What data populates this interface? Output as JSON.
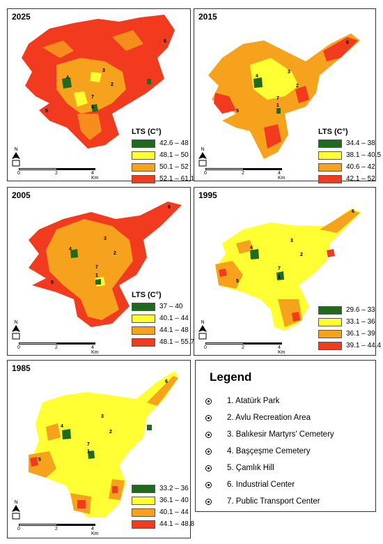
{
  "panels": [
    {
      "year": "2025",
      "legend_title": "LTS (C°)",
      "classes": [
        {
          "label": "42.6 – 48",
          "color": "#1e6b1e"
        },
        {
          "label": "48.1 – 50",
          "color": "#ffff33"
        },
        {
          "label": "50.1 – 52",
          "color": "#f6a21c"
        },
        {
          "label": "52.1 – 61.1",
          "color": "#f23a1e"
        }
      ],
      "scale": {
        "labels": [
          "0",
          "2",
          "4 Km"
        ]
      }
    },
    {
      "year": "2015",
      "legend_title": "LTS (C°)",
      "classes": [
        {
          "label": "34.4 – 38",
          "color": "#1e6b1e"
        },
        {
          "label": "38.1 – 40.5",
          "color": "#ffff33"
        },
        {
          "label": "40.6 – 42",
          "color": "#f6a21c"
        },
        {
          "label": "42.1 – 52",
          "color": "#f23a1e"
        }
      ],
      "scale": {
        "labels": [
          "0",
          "2",
          "4 Km"
        ]
      }
    },
    {
      "year": "2005",
      "legend_title": "LTS (C°)",
      "classes": [
        {
          "label": "37 – 40",
          "color": "#1e6b1e"
        },
        {
          "label": "40.1 – 44",
          "color": "#ffff33"
        },
        {
          "label": "44.1 – 48",
          "color": "#f6a21c"
        },
        {
          "label": "48.1 – 55.7",
          "color": "#f23a1e"
        }
      ],
      "scale": {
        "labels": [
          "0",
          "2",
          "4 Km"
        ]
      }
    },
    {
      "year": "1995",
      "legend_title": "",
      "classes": [
        {
          "label": "29.6 – 33",
          "color": "#1e6b1e"
        },
        {
          "label": "33.1 – 36",
          "color": "#ffff33"
        },
        {
          "label": "36.1 – 39",
          "color": "#f6a21c"
        },
        {
          "label": "39.1 – 44.4",
          "color": "#f23a1e"
        }
      ],
      "scale": {
        "labels": [
          "0",
          "2",
          "4 Km"
        ]
      }
    },
    {
      "year": "1985",
      "legend_title": "",
      "classes": [
        {
          "label": "33.2 – 36",
          "color": "#1e6b1e"
        },
        {
          "label": "36.1 – 40",
          "color": "#ffff33"
        },
        {
          "label": "40.1 – 44",
          "color": "#f6a21c"
        },
        {
          "label": "44.1 – 48.8",
          "color": "#f23a1e"
        }
      ],
      "scale": {
        "labels": [
          "0",
          "2",
          "4 Km"
        ]
      }
    }
  ],
  "north_label": "N",
  "map_labels": [
    "1",
    "2",
    "3",
    "4",
    "5",
    "6",
    "7"
  ],
  "legend": {
    "title": "Legend",
    "items": [
      "1. Atatürk Park",
      "2. Avlu Recreation Area",
      "3. Balıkesir Martyrs' Cemetery",
      "4. Başçeşme Cemetery",
      "5. Çamlık  Hill",
      "6. Industrial Center",
      "7. Public Transport Center"
    ]
  }
}
